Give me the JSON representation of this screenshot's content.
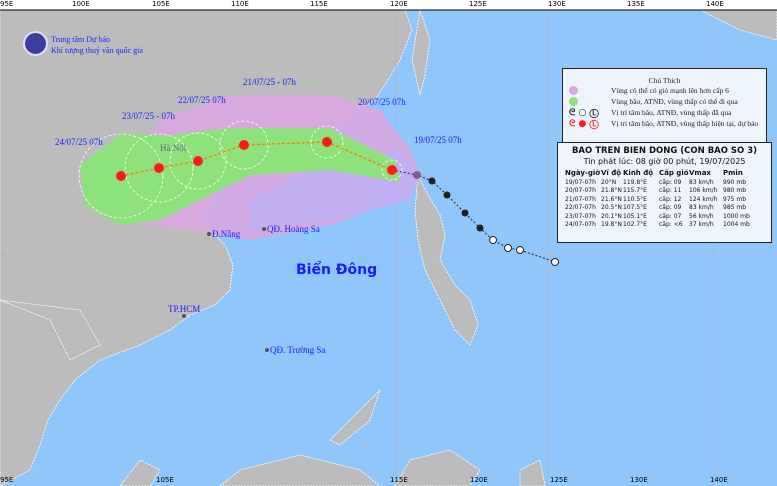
{
  "header": {
    "agency_line1": "Trung tâm Dự báo",
    "agency_line2": "Khí tượng thuỷ văn quốc gia"
  },
  "axes": {
    "top": [
      "95E",
      "100E",
      "105E",
      "110E",
      "115E",
      "120E",
      "125E",
      "130E",
      "135E",
      "140E"
    ],
    "bottom": [
      "95E",
      "105E",
      "115E",
      "120E",
      "125E",
      "130E",
      "140E"
    ]
  },
  "colors": {
    "sea": "#8fc6fc",
    "land": "#bcbcbc",
    "wind_strong": "#d9a6e0",
    "risk_zone": "#8ee27c",
    "outer_zone": "#c2aef2",
    "forecast_icon": "#ff1a1a"
  },
  "places": {
    "hanoi": "Hà Nội",
    "danang": "Đ.Nẵng",
    "hoangsa": "QĐ. Hoàng Sa",
    "hcm": "TP.HCM",
    "truongsa": "QĐ. Trường Sa",
    "sea": "Biển Đông"
  },
  "track_labels": [
    "24/07/25   07h",
    "23/07/25 - 07h",
    "22/07/25   07h",
    "21/07/25 - 07h",
    "20/07/25   07h",
    "19/07/25   07h"
  ],
  "legend": {
    "title": "Chú Thích",
    "items": [
      {
        "icon": "purple-circle",
        "text": "Vùng có thể có gió mạnh lên hơn cấp 6"
      },
      {
        "icon": "green-circle",
        "text": "Vùng bão, ATNĐ, vùng thấp có thể đi qua"
      },
      {
        "icon": "black-storm-icons",
        "text": "Vị trí tâm bão, ATNĐ, vùng thấp đã qua"
      },
      {
        "icon": "red-storm-icons",
        "text": "Vị trí tâm bão, ATNĐ, vùng thấp hiện tại, dự báo"
      }
    ]
  },
  "bulletin": {
    "title": "BAO TREN BIEN DONG (CON BAO SO 3)",
    "issued": "Tin phát lúc: 08 giờ 00 phút, 19/07/2025",
    "columns": [
      "Ngày-giờ",
      "Vĩ độ",
      "Kinh độ",
      "Cấp gió",
      "Vmax",
      "Pmin"
    ],
    "rows": [
      [
        "19/07-07h",
        "20°N",
        "119.8°E",
        "cấp: 09",
        "83 km/h",
        "990 mb"
      ],
      [
        "20/07-07h",
        "21.8°N",
        "115.7°E",
        "cấp: 11",
        "106 km/h",
        "980 mb"
      ],
      [
        "21/07-07h",
        "21.6°N",
        "110.5°E",
        "cấp: 12",
        "124 km/h",
        "975 mb"
      ],
      [
        "22/07-07h",
        "20.5°N",
        "107.5°E",
        "cấp: 09",
        "83 km/h",
        "985 mb"
      ],
      [
        "23/07-07h",
        "20.1°N",
        "105.1°E",
        "cấp: 07",
        "56 km/h",
        "1000 mb"
      ],
      [
        "24/07-07h",
        "19.8°N",
        "102.7°E",
        "cấp: <6",
        "37 km/h",
        "1004 mb"
      ]
    ]
  }
}
